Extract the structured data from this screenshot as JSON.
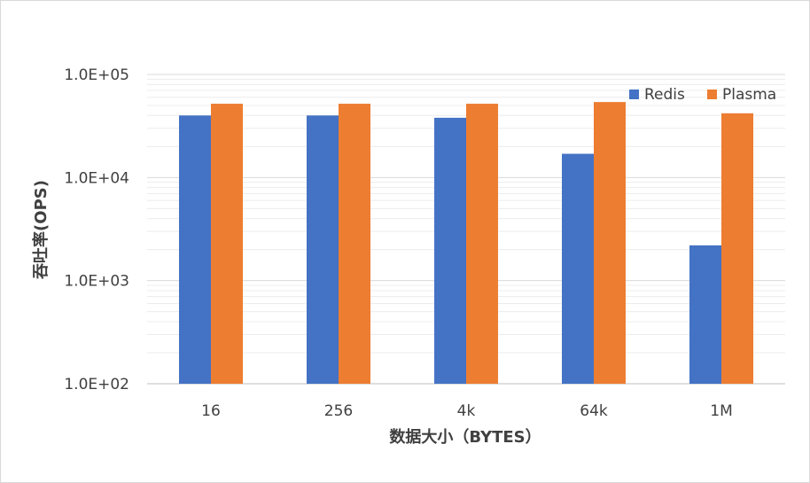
{
  "chart_data": {
    "type": "bar",
    "title": "",
    "xlabel": "数据大小（BYTES）",
    "ylabel": "吞吐率(OPS)",
    "yscale": "log",
    "ylim": [
      100,
      100000
    ],
    "yticks": [
      100,
      1000,
      10000,
      100000
    ],
    "ytick_labels": [
      "1.0E+02",
      "1.0E+03",
      "1.0E+04",
      "1.0E+05"
    ],
    "grid": true,
    "legend_position": "top-right",
    "categories": [
      "16",
      "256",
      "4k",
      "64k",
      "1M"
    ],
    "series": [
      {
        "name": "Redis",
        "color": "#4472C4",
        "values": [
          40000,
          40000,
          38000,
          17000,
          2200
        ]
      },
      {
        "name": "Plasma",
        "color": "#ED7D31",
        "values": [
          52000,
          52000,
          52000,
          54000,
          42000
        ]
      }
    ]
  }
}
